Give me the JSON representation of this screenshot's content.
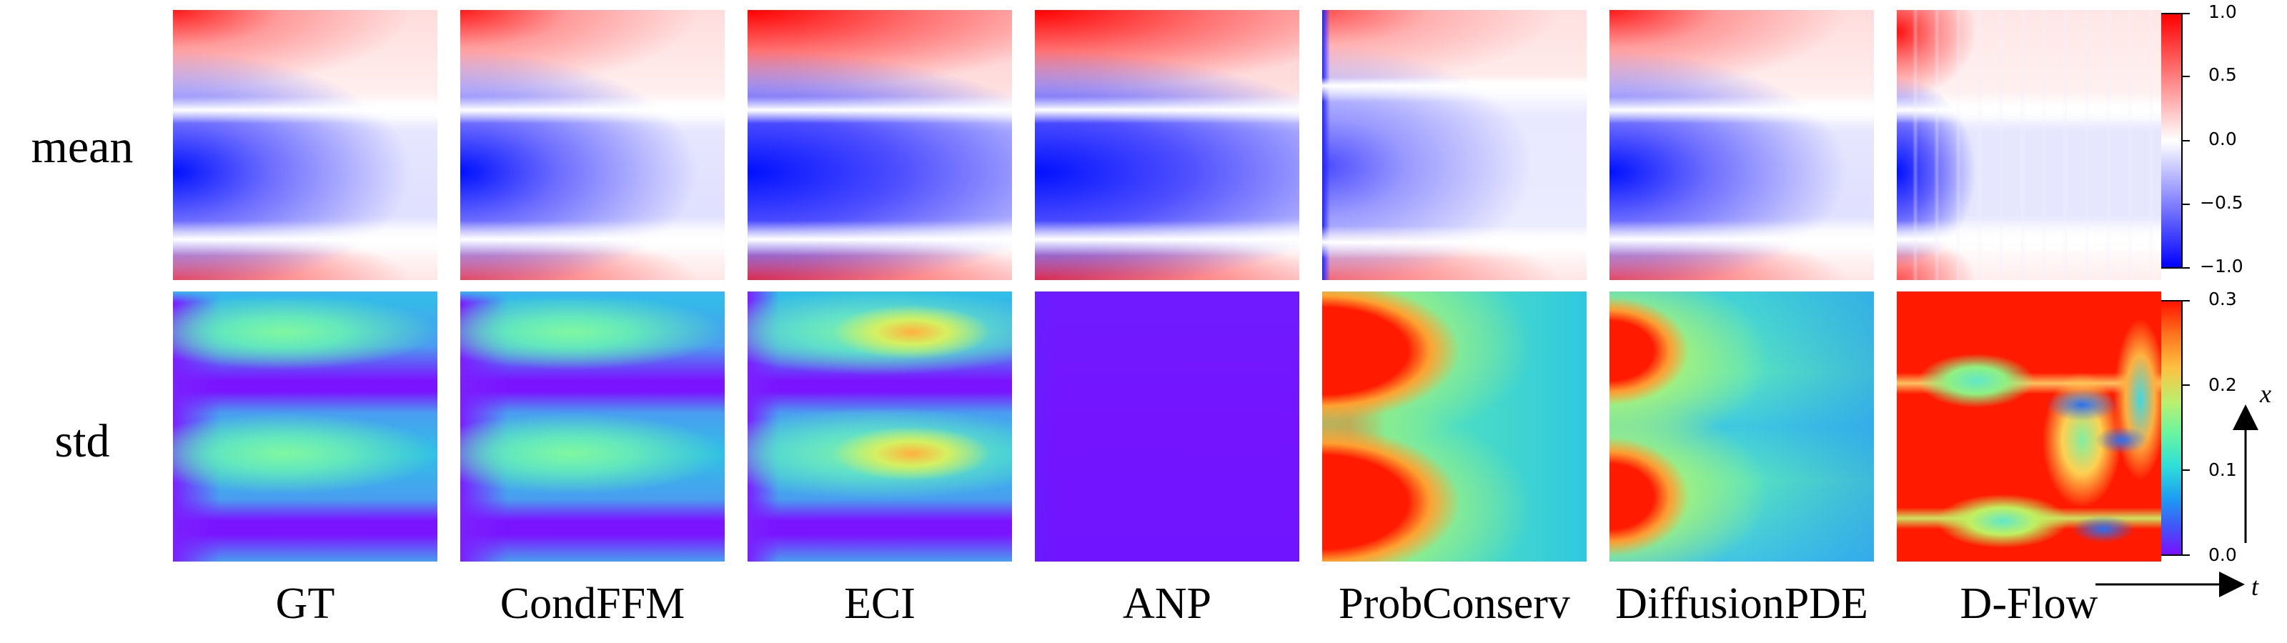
{
  "row_labels": {
    "mean": "mean",
    "std": "std"
  },
  "columns": [
    {
      "label": "GT",
      "mean_style": "smooth",
      "std_style": "gt"
    },
    {
      "label": "CondFFM",
      "mean_style": "smooth",
      "std_style": "gt"
    },
    {
      "label": "ECI",
      "mean_style": "strong",
      "std_style": "eci"
    },
    {
      "label": "ANP",
      "mean_style": "strong",
      "std_style": "anp"
    },
    {
      "label": "ProbConserv",
      "mean_style": "probconserv",
      "std_style": "probconserv"
    },
    {
      "label": "DiffusionPDE",
      "mean_style": "smooth",
      "std_style": "diffusionpde"
    },
    {
      "label": "D-Flow",
      "mean_style": "dflow",
      "std_style": "dflow"
    }
  ],
  "mean_colorbar": {
    "ticks": [
      "1.0",
      "0.5",
      "0.0",
      "−0.5",
      "−1.0"
    ],
    "colormap": "bwr"
  },
  "std_colorbar": {
    "ticks": [
      "0.3",
      "0.2",
      "0.1",
      "0.0"
    ],
    "colormap": "rainbow"
  },
  "axes": {
    "x_label": "x",
    "t_label": "t"
  },
  "colors": {
    "red": "#ff0000",
    "blue": "#0000ff",
    "white": "#ffffff",
    "purple": "#7a10ff",
    "cyan": "#34d1e3",
    "green": "#7ef58a"
  }
}
